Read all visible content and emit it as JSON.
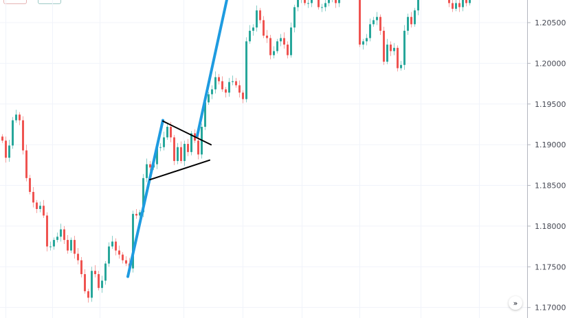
{
  "chart_data": {
    "type": "candlestick",
    "ylim": [
      1.1685,
      1.2088
    ],
    "y_ticks": [
      "1.20500",
      "1.20000",
      "1.19500",
      "1.19000",
      "1.18500",
      "1.18000",
      "1.17500",
      "1.17000"
    ],
    "y_tick_values": [
      1.205,
      1.2,
      1.195,
      1.19,
      1.185,
      1.18,
      1.175,
      1.17
    ],
    "grid": true,
    "up_color": "#26a69a",
    "down_color": "#ef5350",
    "first_open": 1.191,
    "closes": [
      1.1905,
      1.1884,
      1.1899,
      1.193,
      1.1937,
      1.193,
      1.1893,
      1.1859,
      1.1842,
      1.1829,
      1.1821,
      1.1825,
      1.1813,
      1.1775,
      1.1775,
      1.1783,
      1.1787,
      1.1796,
      1.1783,
      1.177,
      1.1783,
      1.1766,
      1.1758,
      1.1741,
      1.172,
      1.1712,
      1.1745,
      1.1741,
      1.1724,
      1.1733,
      1.1754,
      1.1775,
      1.1781,
      1.177,
      1.1765,
      1.1758,
      1.1754,
      1.1748,
      1.1815,
      1.1813,
      1.1817,
      1.1859,
      1.1876,
      1.1872,
      1.1876,
      1.1897,
      1.1897,
      1.1909,
      1.1922,
      1.1909,
      1.188,
      1.1897,
      1.188,
      1.1901,
      1.1891,
      1.1914,
      1.1905,
      1.1888,
      1.1922,
      1.1952,
      1.1962,
      1.1968,
      1.1983,
      1.1978,
      1.1968,
      1.1964,
      1.1977,
      1.1978,
      1.1973,
      1.1964,
      1.1956,
      1.2027,
      1.204,
      1.2044,
      1.2065,
      1.2053,
      1.2034,
      1.2031,
      1.201,
      1.2015,
      1.2027,
      1.2031,
      1.2023,
      1.201,
      1.2044,
      1.2069,
      1.2078,
      1.2086,
      1.2074,
      1.2074,
      1.2082,
      1.2082,
      1.2069,
      1.2069,
      1.2074,
      1.2078,
      1.2082,
      1.2074,
      1.2086,
      1.209,
      1.2086,
      1.209,
      1.2095,
      1.2086,
      1.2023,
      1.2027,
      1.2031,
      1.2048,
      1.2053,
      1.2057,
      1.204,
      1.2002,
      1.2023,
      1.2015,
      1.2019,
      1.1994,
      1.1998,
      1.204,
      1.2057,
      1.2048,
      1.2065,
      1.2086,
      1.2095,
      1.2099,
      1.2099,
      1.2103,
      1.2099,
      1.2099,
      1.2095,
      1.209,
      1.2074,
      1.2067,
      1.2074,
      1.2069,
      1.2078,
      1.2074,
      1.2078
    ],
    "annotations": [
      {
        "kind": "trend-line",
        "color": "#1e9be0",
        "from": [
          36.8,
          1.1738
        ],
        "to": [
          47,
          1.193
        ]
      },
      {
        "kind": "trend-line",
        "color": "#1e9be0",
        "from": [
          57,
          1.1911
        ],
        "to": [
          65.6,
          1.2078
        ]
      },
      {
        "kind": "trend-line",
        "color": "#000000",
        "from": [
          47,
          1.1929
        ],
        "to": [
          61,
          1.19
        ]
      },
      {
        "kind": "trend-line",
        "color": "#000000",
        "from": [
          43.2,
          1.1857
        ],
        "to": [
          60.6,
          1.1881
        ]
      }
    ]
  },
  "controls": {
    "scroll_to_latest": "»"
  }
}
